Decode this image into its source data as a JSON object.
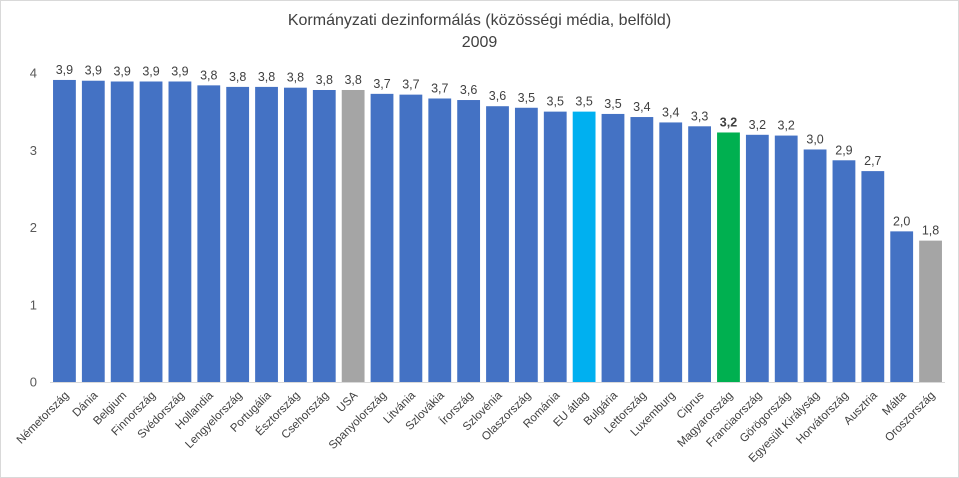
{
  "chart_data": {
    "type": "bar",
    "title": "Kormányzati dezinformálás (közösségi média, belföld)",
    "subtitle": "2009",
    "xlabel": "",
    "ylabel": "",
    "ylim": [
      0,
      4
    ],
    "yticks": [
      "0",
      "1",
      "2",
      "3",
      "4"
    ],
    "grid": false,
    "categories": [
      "Németország",
      "Dánia",
      "Belgium",
      "Finnország",
      "Svédország",
      "Hollandia",
      "Lengyelország",
      "Portugália",
      "Észtország",
      "Csehország",
      "USA",
      "Spanyolország",
      "Litvánia",
      "Szlovákia",
      "Írország",
      "Szlovénia",
      "Olaszország",
      "Románia",
      "EU átlag",
      "Bulgária",
      "Lettország",
      "Luxemburg",
      "Ciprus",
      "Magyarország",
      "Franciaország",
      "Görögország",
      "Egyesült Királyság",
      "Horvátország",
      "Ausztria",
      "Málta",
      "Oroszország"
    ],
    "values": [
      3.91,
      3.9,
      3.89,
      3.89,
      3.89,
      3.84,
      3.82,
      3.82,
      3.81,
      3.78,
      3.78,
      3.73,
      3.72,
      3.67,
      3.65,
      3.57,
      3.55,
      3.5,
      3.5,
      3.47,
      3.43,
      3.36,
      3.31,
      3.23,
      3.2,
      3.19,
      3.01,
      2.87,
      2.73,
      1.95,
      1.83
    ],
    "labels": [
      "3,9",
      "3,9",
      "3,9",
      "3,9",
      "3,9",
      "3,8",
      "3,8",
      "3,8",
      "3,8",
      "3,8",
      "3,8",
      "3,7",
      "3,7",
      "3,7",
      "3,6",
      "3,6",
      "3,5",
      "3,5",
      "3,5",
      "3,5",
      "3,4",
      "3,4",
      "3,3",
      "3,2",
      "3,2",
      "3,2",
      "3,0",
      "2,9",
      "2,7",
      "2,0",
      "1,8"
    ],
    "colors": {
      "default": "#4472c4",
      "USA": "#a5a5a5",
      "Oroszország": "#a5a5a5",
      "EU átlag": "#00b0f0",
      "Magyarország": "#00b050"
    },
    "highlight_label": "Magyarország"
  }
}
